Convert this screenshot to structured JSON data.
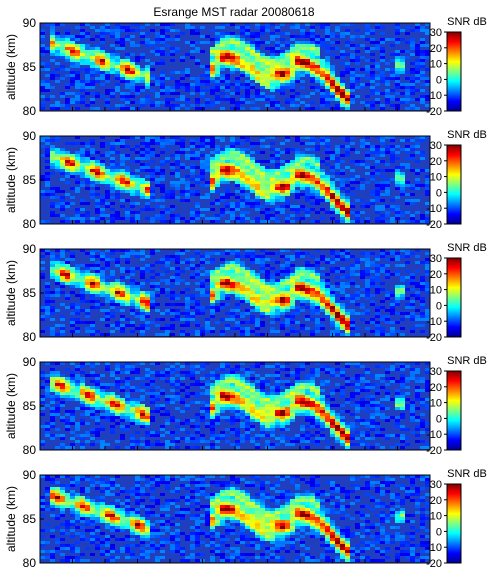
{
  "title": "Esrange MST radar 20080618",
  "chart_data": [
    {
      "type": "heatmap",
      "panel": 1,
      "ylabel": "altitude (km)",
      "ylim": [
        80,
        90
      ],
      "yticks": [
        "90",
        "85",
        "80"
      ],
      "colorbar": {
        "label": "SNR dB",
        "range": [
          -20,
          30
        ],
        "ticks": [
          "30",
          "20",
          "10",
          "0",
          "-10",
          "-20"
        ]
      }
    },
    {
      "type": "heatmap",
      "panel": 2,
      "ylabel": "altitude (km)",
      "ylim": [
        80,
        90
      ],
      "yticks": [
        "90",
        "85",
        "80"
      ],
      "colorbar": {
        "label": "SNR dB",
        "range": [
          -20,
          30
        ],
        "ticks": [
          "30",
          "20",
          "10",
          "0",
          "-10",
          "-20"
        ]
      }
    },
    {
      "type": "heatmap",
      "panel": 3,
      "ylabel": "altitude (km)",
      "ylim": [
        80,
        90
      ],
      "yticks": [
        "90",
        "85",
        "80"
      ],
      "colorbar": {
        "label": "SNR dB",
        "range": [
          -20,
          30
        ],
        "ticks": [
          "30",
          "20",
          "10",
          "0",
          "-10",
          "-20"
        ]
      }
    },
    {
      "type": "heatmap",
      "panel": 4,
      "ylabel": "altitude (km)",
      "ylim": [
        80,
        90
      ],
      "yticks": [
        "90",
        "85",
        "80"
      ],
      "colorbar": {
        "label": "SNR dB",
        "range": [
          -20,
          30
        ],
        "ticks": [
          "30",
          "20",
          "10",
          "0",
          "-10",
          "-20"
        ]
      }
    },
    {
      "type": "heatmap",
      "panel": 5,
      "ylabel": "altitude (km)",
      "ylim": [
        80,
        90
      ],
      "yticks": [
        "90",
        "85",
        "80"
      ],
      "colorbar": {
        "label": "SNR dB",
        "range": [
          -20,
          30
        ],
        "ticks": [
          "30",
          "20",
          "10",
          "0",
          "-10",
          "-20"
        ]
      }
    }
  ]
}
